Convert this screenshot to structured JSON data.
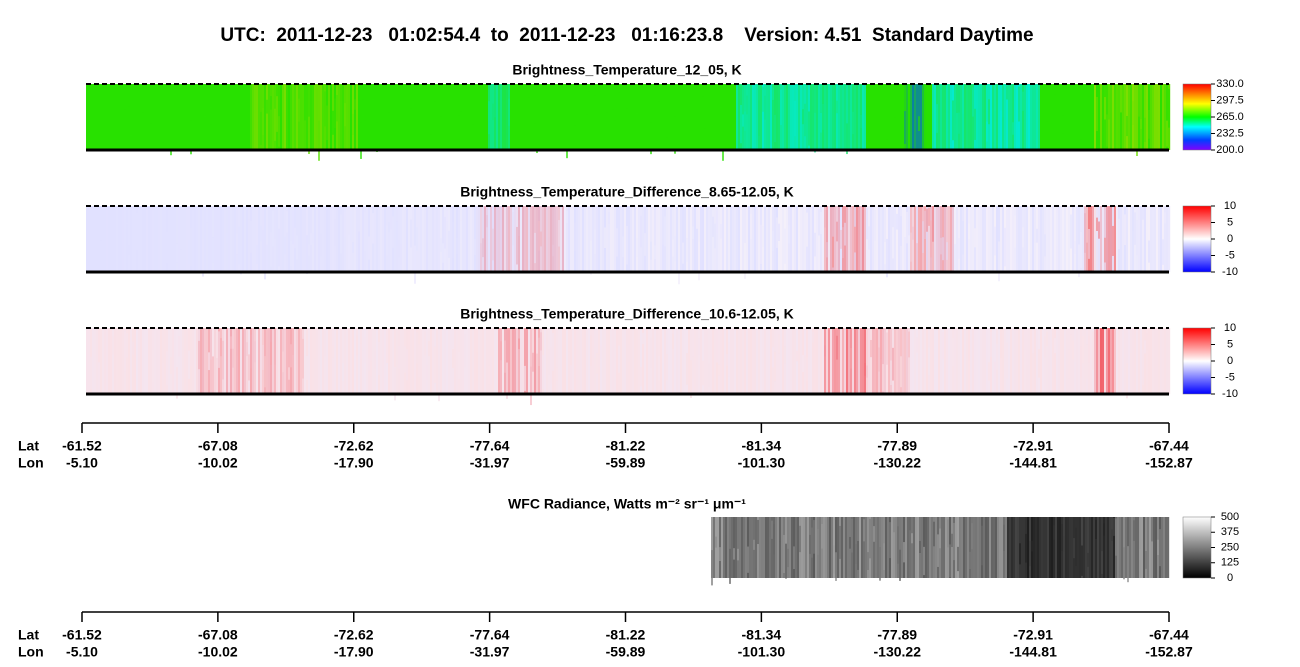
{
  "title": "UTC:  2011-12-23   01:02:54.4  to  2011-12-23   01:16:23.8    Version: 4.51  Standard Daytime",
  "chart_data": [
    {
      "type": "image",
      "title": "Brightness_Temperature_12_05, K",
      "colormap": "rainbow",
      "clim": [
        200,
        330
      ],
      "cticks": [
        {
          "value": 330,
          "label": "330.0"
        },
        {
          "value": 297.5,
          "label": "297.5"
        },
        {
          "value": 265,
          "label": "265.0"
        },
        {
          "value": 232.5,
          "label": "232.5"
        },
        {
          "value": 200,
          "label": "200.0"
        }
      ]
    },
    {
      "type": "image",
      "title": "Brightness_Temperature_Difference_8.65-12.05, K",
      "colormap": "bwr",
      "clim": [
        -10,
        10
      ],
      "cticks": [
        10,
        5,
        0,
        -5,
        -10
      ]
    },
    {
      "type": "image",
      "title": "Brightness_Temperature_Difference_10.6-12.05, K",
      "colormap": "bwr",
      "clim": [
        -10,
        10
      ],
      "cticks": [
        10,
        5,
        0,
        -5,
        -10
      ]
    },
    {
      "type": "image",
      "title": "WFC Radiance, Watts m⁻² sr⁻¹ μm⁻¹",
      "colormap": "gray",
      "clim": [
        0,
        500
      ],
      "cticks": [
        500,
        375,
        250,
        125,
        0
      ]
    }
  ],
  "axes": [
    {
      "row_labels": [
        "Lat",
        "Lon"
      ],
      "lat": [
        "-61.52",
        "-67.08",
        "-72.62",
        "-77.64",
        "-81.22",
        "-81.34",
        "-77.89",
        "-72.91",
        "-67.44"
      ],
      "lon": [
        "-5.10",
        "-10.02",
        "-17.90",
        "-31.97",
        "-59.89",
        "-101.30",
        "-130.22",
        "-144.81",
        "-152.87"
      ]
    },
    {
      "row_labels": [
        "Lat",
        "Lon"
      ],
      "lat": [
        "-61.52",
        "-67.08",
        "-72.62",
        "-77.64",
        "-81.22",
        "-81.34",
        "-77.89",
        "-72.91",
        "-67.44"
      ],
      "lon": [
        "-5.10",
        "-10.02",
        "-17.90",
        "-31.97",
        "-59.89",
        "-101.30",
        "-130.22",
        "-144.81",
        "-152.87"
      ]
    }
  ]
}
